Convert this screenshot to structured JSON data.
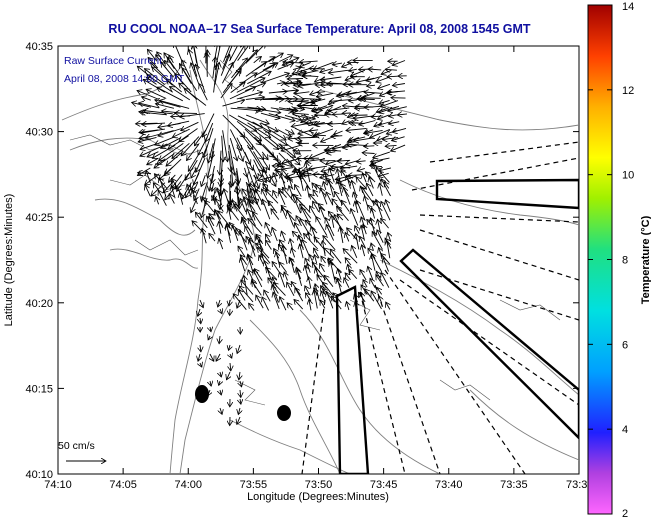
{
  "title": "RU COOL  NOAA–17  Sea Surface Temperature:  April 08, 2008 1545 GMT",
  "overlay": {
    "line1": "Raw Surface Current",
    "line2": "April 08, 2008 14:00 GMT",
    "scale_label": "50 cm/s"
  },
  "axes": {
    "xlabel": "Longitude (Degrees:Minutes)",
    "ylabel": "Latitude (Degrees:Minutes)",
    "xticks": [
      "74:10",
      "74:05",
      "74:00",
      "73:55",
      "73:50",
      "73:45",
      "73:40",
      "73:35",
      "73:3"
    ],
    "yticks": [
      "40:35",
      "40:30",
      "40:25",
      "40:20",
      "40:15",
      "40:10"
    ]
  },
  "colorbar": {
    "label": "Temperature (°C)",
    "ticks": [
      "14",
      "12",
      "10",
      "8",
      "6",
      "4",
      "2"
    ],
    "min": 2,
    "max": 14
  }
}
